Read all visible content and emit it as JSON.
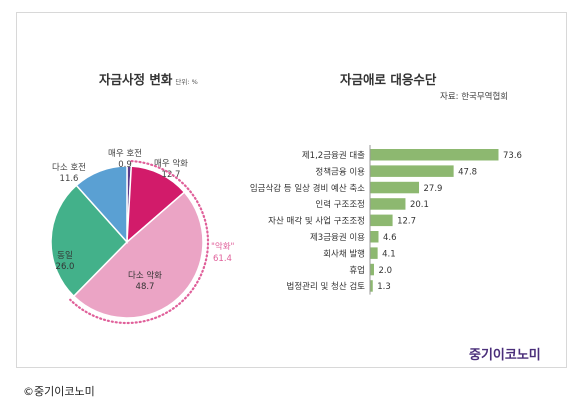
{
  "credit": "©중기이코노미",
  "chart_data": [
    {
      "type": "pie",
      "title": "자금사정 변화",
      "unit_note": "단위: %",
      "slices": [
        {
          "label": "매우 호전",
          "value": 0.9,
          "color": "#5b3a8a"
        },
        {
          "label": "매우 악화",
          "value": 12.7,
          "color": "#d21b6a"
        },
        {
          "label": "다소 악화",
          "value": 48.7,
          "color": "#eba4c5"
        },
        {
          "label": "동일",
          "value": 26.0,
          "color": "#43b18a"
        },
        {
          "label": "다소 호전",
          "value": 11.6,
          "color": "#5aa0d3"
        }
      ],
      "callout": {
        "label": "악화",
        "value": 61.4,
        "color": "#e0609a"
      }
    },
    {
      "type": "bar",
      "orientation": "horizontal",
      "title": "자금애로 대응수단",
      "source": "자료: 한국무역협회",
      "bar_color": "#8db870",
      "categories": [
        "제1,2금융권 대출",
        "정책금융 이용",
        "임금삭감 등 일상 경비 예산 축소",
        "인력 구조조정",
        "자산 매각 및 사업 구조조정",
        "제3금융권 이용",
        "회사채 발행",
        "휴업",
        "법정관리 및 청산 검토"
      ],
      "values": [
        73.6,
        47.8,
        27.9,
        20.1,
        12.7,
        4.6,
        4.1,
        2.0,
        1.3
      ],
      "value_labels": [
        "73.6",
        "47.8",
        "27.9",
        "20.1",
        "12.7",
        "4.6",
        "4.1",
        "2.0",
        "1.3"
      ]
    }
  ],
  "brand": "중기이코노미"
}
